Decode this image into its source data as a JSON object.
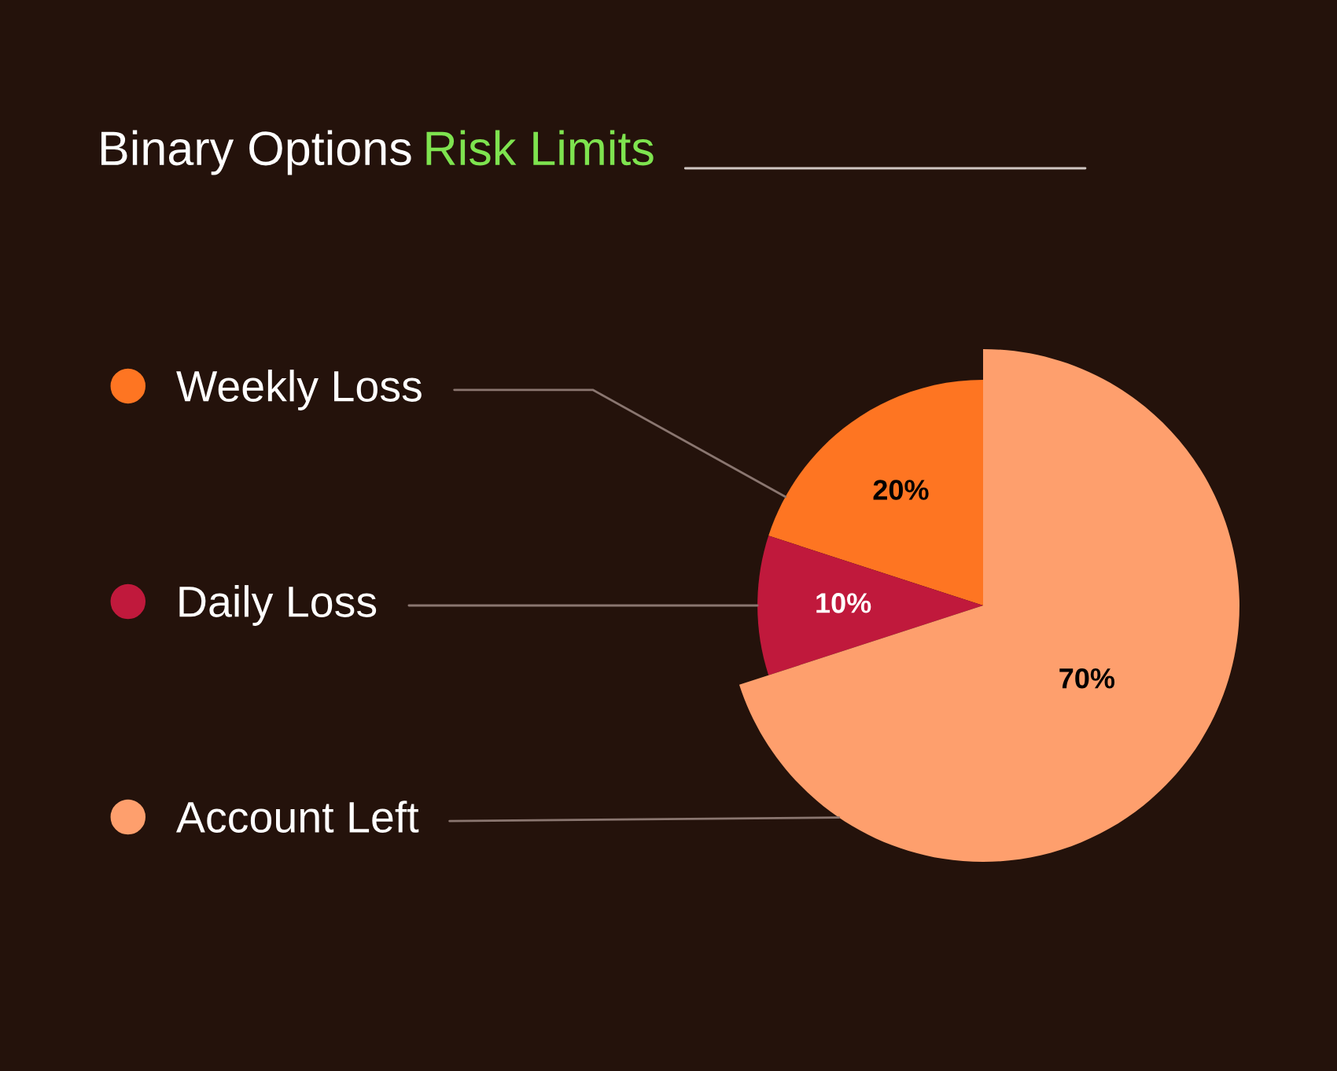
{
  "chart_data": {
    "type": "pie",
    "title": "Binary Options Risk Limits",
    "categories": [
      "Weekly Loss",
      "Daily Loss",
      "Account Left"
    ],
    "values": [
      20,
      10,
      70
    ],
    "colors": [
      "#fe7522",
      "#c0193c",
      "#fe9f6d"
    ],
    "value_labels": [
      "20%",
      "10%",
      "70%"
    ],
    "legend": "left"
  }
}
